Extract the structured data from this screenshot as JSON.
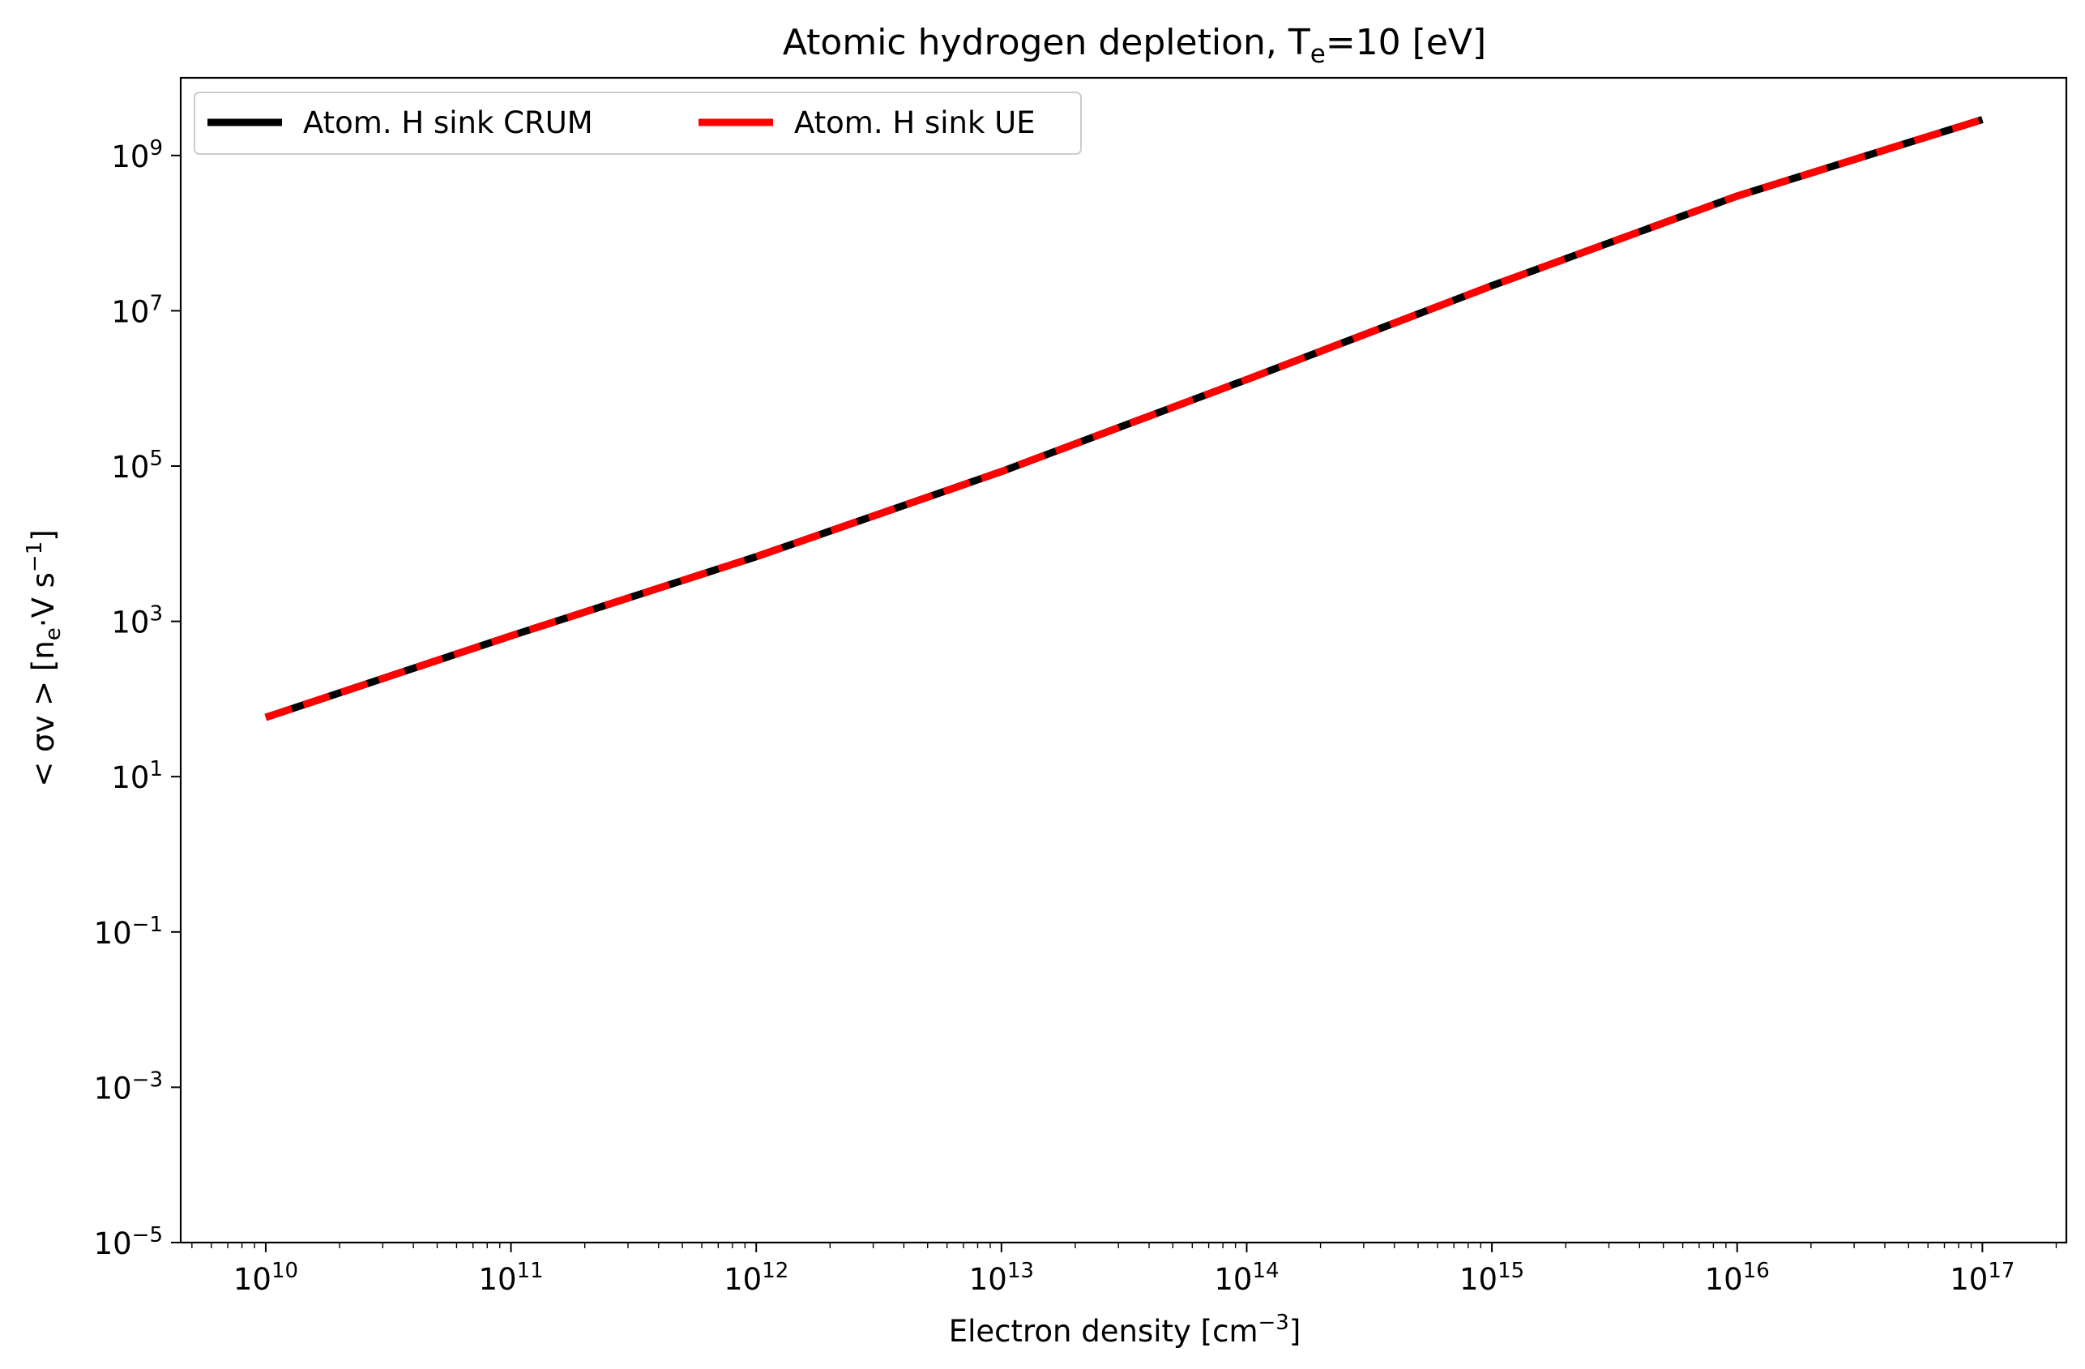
{
  "chart_data": {
    "type": "line",
    "title": {
      "main": "Atomic hydrogen depletion, T",
      "sub": "e",
      "rest": "=10 [eV]"
    },
    "xlabel": {
      "base": "Electron density [cm",
      "sup": "−3",
      "tail": "]"
    },
    "ylabel": {
      "part1": "< σv >  [n",
      "sub": "e",
      "part2": "·V   s",
      "sup": "−1",
      "tail": "]"
    },
    "x_scale": "log",
    "y_scale": "log",
    "xlim": [
      4500000000.0,
      2.2e+17
    ],
    "ylim": [
      1e-05,
      10000000000.0
    ],
    "x_ticks": [
      {
        "base": "10",
        "exp": "10",
        "value": 10000000000.0
      },
      {
        "base": "10",
        "exp": "11",
        "value": 100000000000.0
      },
      {
        "base": "10",
        "exp": "12",
        "value": 1000000000000.0
      },
      {
        "base": "10",
        "exp": "13",
        "value": 10000000000000.0
      },
      {
        "base": "10",
        "exp": "14",
        "value": 100000000000000.0
      },
      {
        "base": "10",
        "exp": "15",
        "value": 1000000000000000.0
      },
      {
        "base": "10",
        "exp": "16",
        "value": 1e+16
      },
      {
        "base": "10",
        "exp": "17",
        "value": 1e+17
      }
    ],
    "y_ticks": [
      {
        "base": "10",
        "exp": "−5",
        "value": 1e-05
      },
      {
        "base": "10",
        "exp": "−3",
        "value": 0.001
      },
      {
        "base": "10",
        "exp": "−1",
        "value": 0.1
      },
      {
        "base": "10",
        "exp": "1",
        "value": 10.0
      },
      {
        "base": "10",
        "exp": "3",
        "value": 1000.0
      },
      {
        "base": "10",
        "exp": "5",
        "value": 100000.0
      },
      {
        "base": "10",
        "exp": "7",
        "value": 10000000.0
      },
      {
        "base": "10",
        "exp": "9",
        "value": 1000000000.0
      }
    ],
    "legend_position": "top-left",
    "legend_columns": 2,
    "grid": false,
    "series": [
      {
        "name": "Atom. H sink CRUM",
        "color": "#000000",
        "style": "solid",
        "x": [
          10000000000.0,
          100000000000.0,
          1000000000000.0,
          10000000000000.0,
          100000000000000.0,
          1000000000000000.0,
          1e+16,
          1e+17
        ],
        "y": [
          58,
          650,
          6800,
          85000,
          1300000,
          21000000,
          300000000,
          2900000000
        ]
      },
      {
        "name": "Atom. H sink UE",
        "color": "#ff0000",
        "style": "dashed",
        "x": [
          10000000000.0,
          100000000000.0,
          1000000000000.0,
          10000000000000.0,
          100000000000000.0,
          1000000000000000.0,
          1e+16,
          1e+17
        ],
        "y": [
          58,
          650,
          6800,
          85000,
          1300000,
          21000000,
          300000000,
          2900000000
        ]
      }
    ]
  }
}
